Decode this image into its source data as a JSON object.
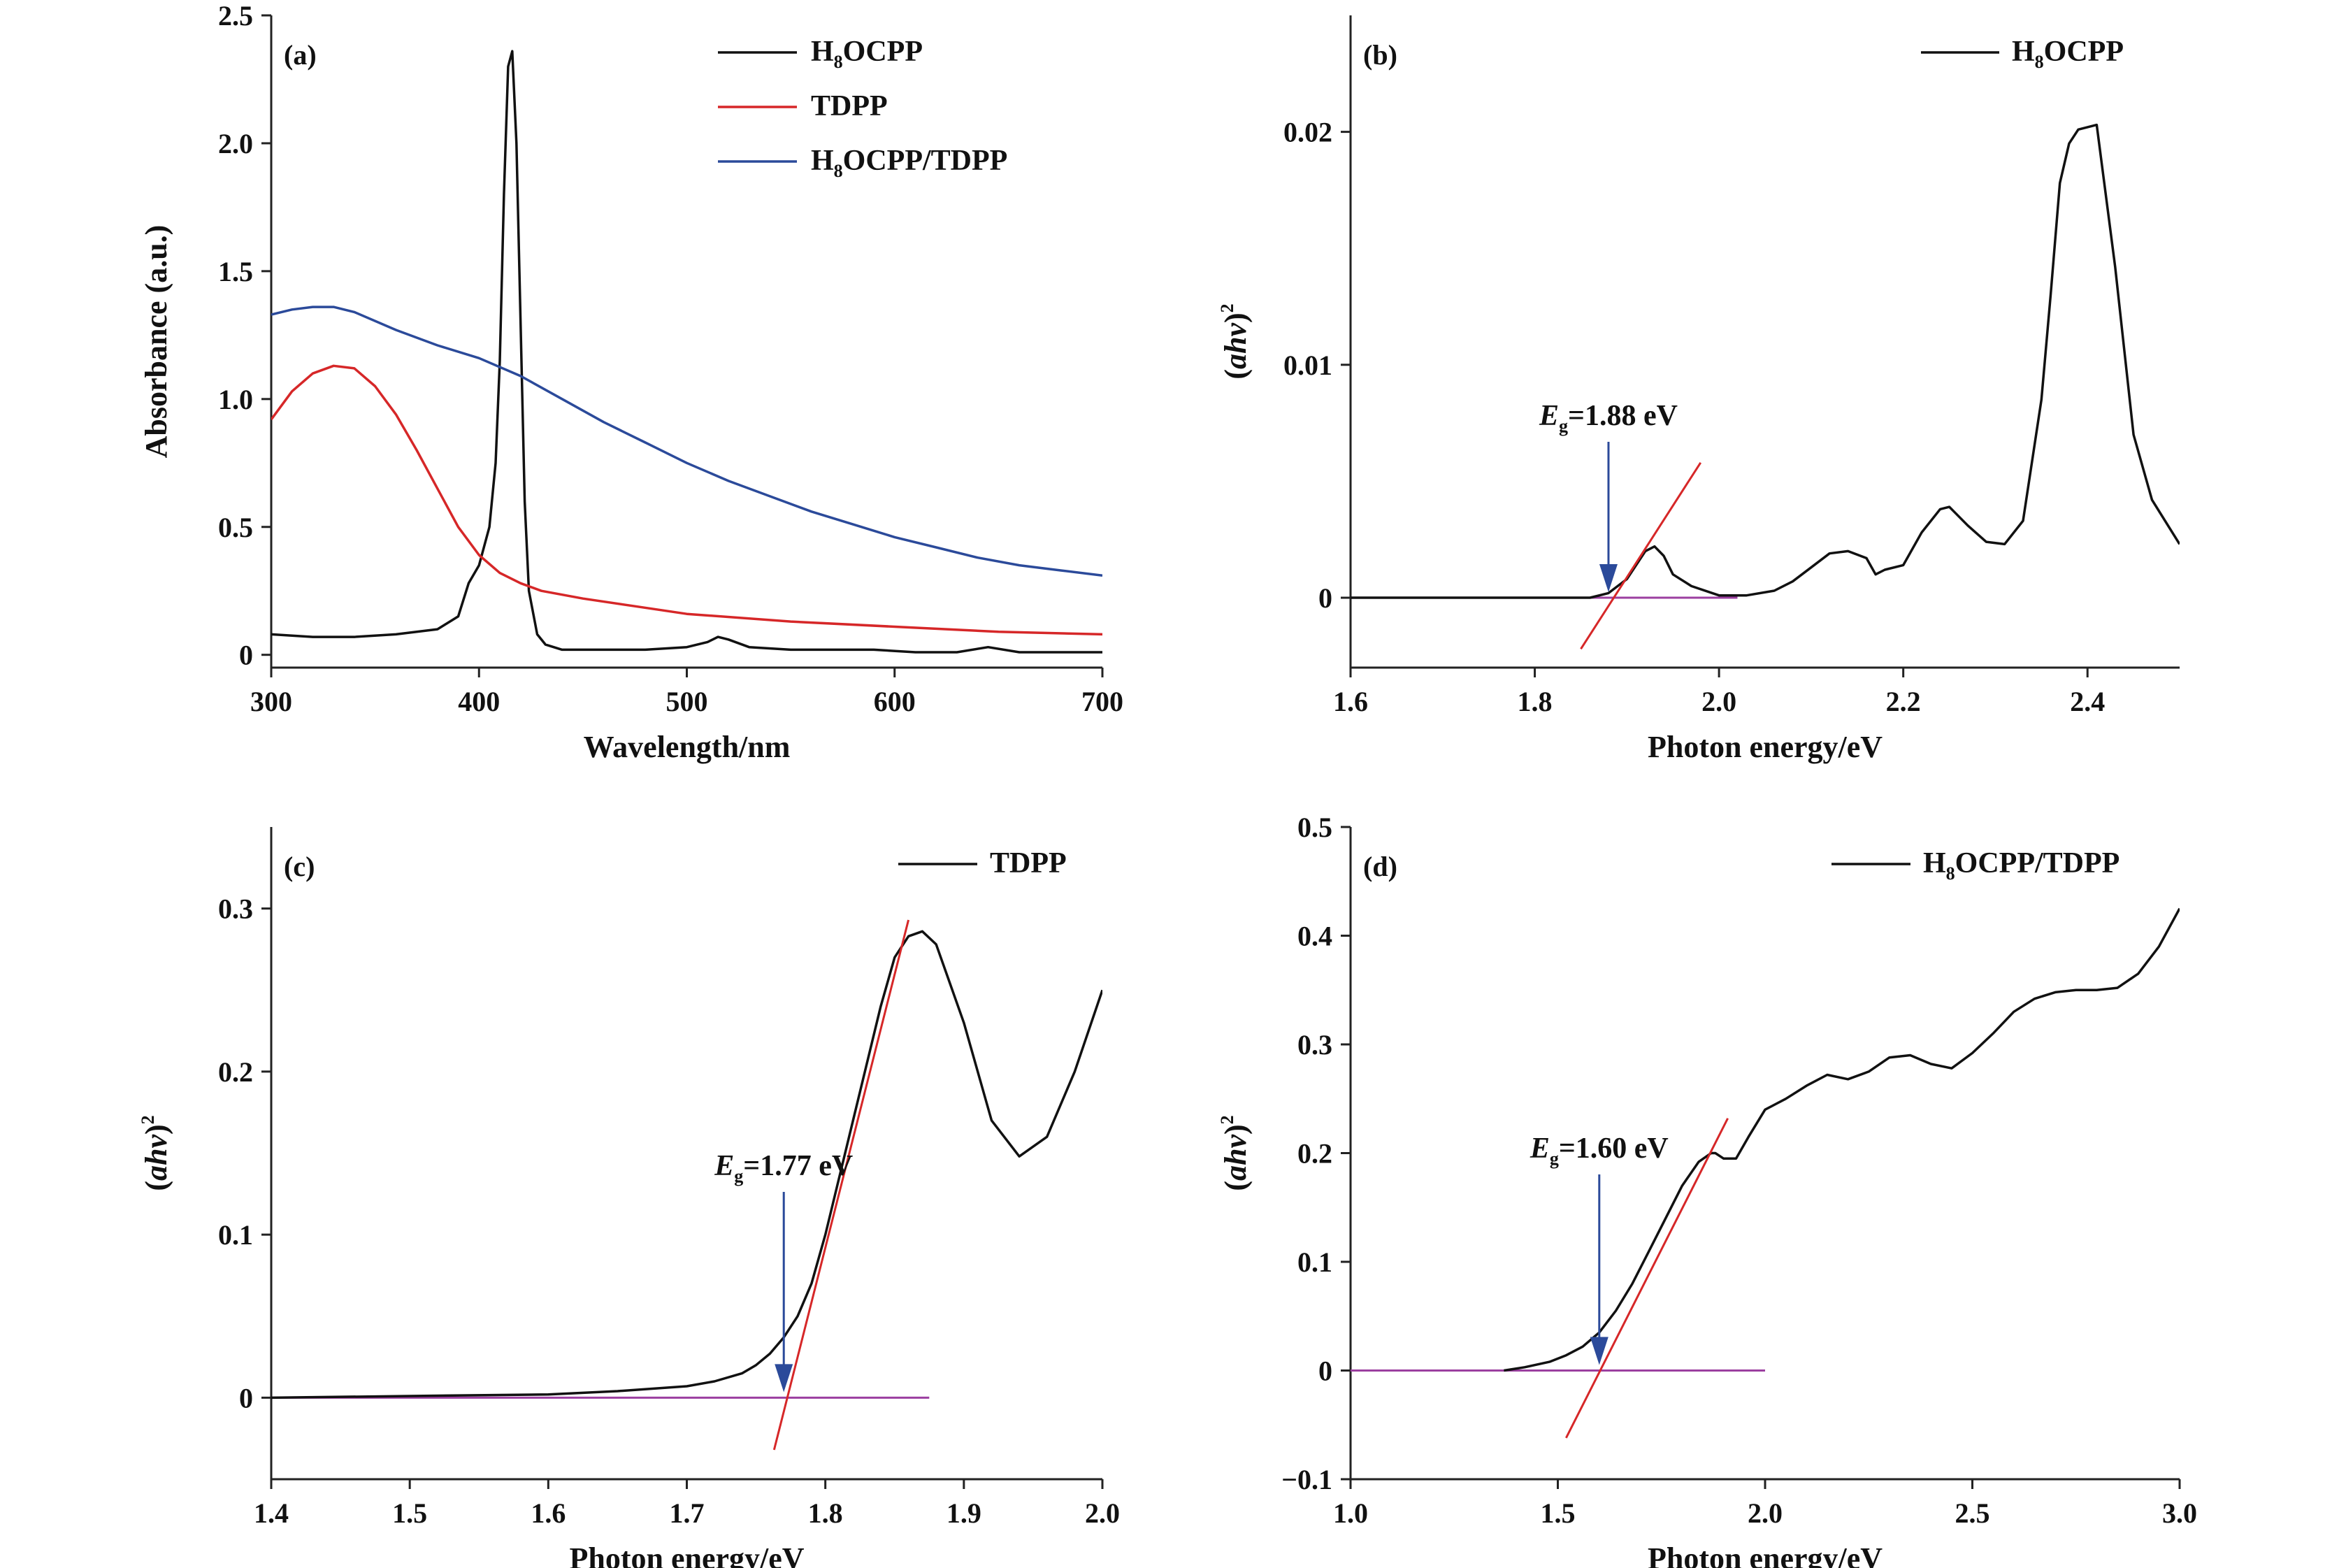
{
  "chart_data": [
    {
      "panel": "(a)",
      "type": "line",
      "xlabel": "Wavelength/nm",
      "ylabel": "Absorbance (a.u.)",
      "xlim": [
        300,
        700
      ],
      "ylim": [
        -0.05,
        2.5
      ],
      "xticks": [
        300,
        400,
        500,
        600,
        700
      ],
      "yticks": [
        0,
        0.5,
        1.0,
        1.5,
        2.0,
        2.5
      ],
      "xtick_labels": [
        "300",
        "400",
        "500",
        "600",
        "700"
      ],
      "ytick_labels": [
        "0",
        "0.5",
        "1.0",
        "1.5",
        "2.0",
        "2.5"
      ],
      "legend_position": "top-right",
      "legend": [
        {
          "main": "H",
          "sub": "8",
          "rest": "OCPP",
          "color": "#111111"
        },
        {
          "main": "TDPP",
          "sub": "",
          "rest": "",
          "color": "#d62728"
        },
        {
          "main": "H",
          "sub": "8",
          "rest": "OCPP/TDPP",
          "color": "#2b4a9a"
        }
      ],
      "series": [
        {
          "name": "H8OCPP",
          "color": "#111111",
          "x": [
            300,
            320,
            340,
            360,
            380,
            390,
            395,
            400,
            405,
            408,
            410,
            412,
            414,
            416,
            418,
            420,
            422,
            424,
            428,
            432,
            440,
            460,
            480,
            500,
            510,
            515,
            520,
            530,
            550,
            570,
            590,
            610,
            630,
            645,
            660,
            680,
            700
          ],
          "y": [
            0.08,
            0.07,
            0.07,
            0.08,
            0.1,
            0.15,
            0.28,
            0.35,
            0.5,
            0.75,
            1.15,
            1.8,
            2.3,
            2.36,
            2.0,
            1.3,
            0.6,
            0.25,
            0.08,
            0.04,
            0.02,
            0.02,
            0.02,
            0.03,
            0.05,
            0.07,
            0.06,
            0.03,
            0.02,
            0.02,
            0.02,
            0.01,
            0.01,
            0.03,
            0.01,
            0.01,
            0.01
          ]
        },
        {
          "name": "TDPP",
          "color": "#d62728",
          "x": [
            300,
            310,
            320,
            330,
            340,
            350,
            360,
            370,
            380,
            390,
            400,
            410,
            420,
            430,
            450,
            475,
            500,
            550,
            600,
            650,
            700
          ],
          "y": [
            0.92,
            1.03,
            1.1,
            1.13,
            1.12,
            1.05,
            0.94,
            0.8,
            0.65,
            0.5,
            0.39,
            0.32,
            0.28,
            0.25,
            0.22,
            0.19,
            0.16,
            0.13,
            0.11,
            0.09,
            0.08
          ]
        },
        {
          "name": "H8OCPP/TDPP",
          "color": "#2b4a9a",
          "x": [
            300,
            310,
            320,
            330,
            340,
            360,
            380,
            400,
            420,
            440,
            460,
            480,
            500,
            520,
            540,
            560,
            580,
            600,
            620,
            640,
            660,
            680,
            700
          ],
          "y": [
            1.33,
            1.35,
            1.36,
            1.36,
            1.34,
            1.27,
            1.21,
            1.16,
            1.09,
            1.0,
            0.91,
            0.83,
            0.75,
            0.68,
            0.62,
            0.56,
            0.51,
            0.46,
            0.42,
            0.38,
            0.35,
            0.33,
            0.31
          ]
        }
      ]
    },
    {
      "panel": "(b)",
      "type": "line",
      "xlabel": "Photon energy/eV",
      "ylabel": "(ahv)2",
      "xlim": [
        1.6,
        2.5
      ],
      "ylim": [
        -0.003,
        0.025
      ],
      "xticks": [
        1.6,
        1.8,
        2.0,
        2.2,
        2.4
      ],
      "yticks": [
        0,
        0.01,
        0.02
      ],
      "xtick_labels": [
        "1.6",
        "1.8",
        "2.0",
        "2.2",
        "2.4"
      ],
      "ytick_labels": [
        "0",
        "0.01",
        "0.02"
      ],
      "legend_position": "top-right",
      "legend": [
        {
          "main": "H",
          "sub": "8",
          "rest": "OCPP",
          "color": "#111111"
        }
      ],
      "annotation": {
        "E": "E",
        "sub": "g",
        "rest": "=1.88 eV",
        "x": 1.88
      },
      "series": [
        {
          "name": "H8OCPP",
          "color": "#111111",
          "x": [
            1.6,
            1.7,
            1.8,
            1.86,
            1.88,
            1.9,
            1.91,
            1.92,
            1.93,
            1.94,
            1.95,
            1.97,
            2.0,
            2.03,
            2.06,
            2.08,
            2.1,
            2.12,
            2.14,
            2.16,
            2.17,
            2.18,
            2.2,
            2.22,
            2.24,
            2.25,
            2.27,
            2.29,
            2.31,
            2.33,
            2.35,
            2.36,
            2.37,
            2.38,
            2.39,
            2.41,
            2.43,
            2.45,
            2.47,
            2.5
          ],
          "y": [
            0,
            0,
            0,
            0,
            0.0002,
            0.0008,
            0.0014,
            0.002,
            0.0022,
            0.0018,
            0.001,
            0.0005,
            0.0001,
            0.0001,
            0.0003,
            0.0007,
            0.0013,
            0.0019,
            0.002,
            0.0017,
            0.001,
            0.0012,
            0.0014,
            0.0028,
            0.0038,
            0.0039,
            0.0031,
            0.0024,
            0.0023,
            0.0033,
            0.0085,
            0.013,
            0.0178,
            0.0195,
            0.0201,
            0.0203,
            0.0142,
            0.007,
            0.0042,
            0.0023
          ]
        }
      ],
      "tangent": {
        "x": [
          1.85,
          1.98
        ],
        "y": [
          -0.0022,
          0.0058
        ]
      },
      "baseline": {
        "x": [
          1.6,
          2.02
        ],
        "y": [
          0,
          0
        ]
      }
    },
    {
      "panel": "(c)",
      "type": "line",
      "xlabel": "Photon energy/eV",
      "ylabel": "(ahv)2",
      "xlim": [
        1.4,
        2.0
      ],
      "ylim": [
        -0.05,
        0.35
      ],
      "xticks": [
        1.4,
        1.5,
        1.6,
        1.7,
        1.8,
        1.9,
        2.0
      ],
      "yticks": [
        0,
        0.1,
        0.2,
        0.3
      ],
      "xtick_labels": [
        "1.4",
        "1.5",
        "1.6",
        "1.7",
        "1.8",
        "1.9",
        "2.0"
      ],
      "ytick_labels": [
        "0",
        "0.1",
        "0.2",
        "0.3"
      ],
      "legend_position": "top-right",
      "legend": [
        {
          "main": "TDPP",
          "sub": "",
          "rest": "",
          "color": "#111111"
        }
      ],
      "annotation": {
        "E": "E",
        "sub": "g",
        "rest": "=1.77 eV",
        "x": 1.77
      },
      "series": [
        {
          "name": "TDPP",
          "color": "#111111",
          "x": [
            1.4,
            1.5,
            1.6,
            1.65,
            1.7,
            1.72,
            1.74,
            1.75,
            1.76,
            1.77,
            1.78,
            1.79,
            1.8,
            1.82,
            1.84,
            1.85,
            1.86,
            1.87,
            1.88,
            1.9,
            1.92,
            1.94,
            1.96,
            1.98,
            2.0
          ],
          "y": [
            0,
            0.001,
            0.002,
            0.004,
            0.007,
            0.01,
            0.015,
            0.02,
            0.027,
            0.037,
            0.05,
            0.07,
            0.1,
            0.17,
            0.24,
            0.27,
            0.283,
            0.286,
            0.278,
            0.23,
            0.17,
            0.148,
            0.16,
            0.2,
            0.25
          ]
        }
      ],
      "tangent": {
        "x": [
          1.763,
          1.86
        ],
        "y": [
          -0.032,
          0.293
        ]
      },
      "baseline": {
        "x": [
          1.4,
          1.875
        ],
        "y": [
          0,
          0
        ]
      }
    },
    {
      "panel": "(d)",
      "type": "line",
      "xlabel": "Photon energy/eV",
      "ylabel": "(ahv)2",
      "xlim": [
        1.0,
        3.0
      ],
      "ylim": [
        -0.1,
        0.5
      ],
      "xticks": [
        1.0,
        1.5,
        2.0,
        2.5,
        3.0
      ],
      "yticks": [
        -0.1,
        0,
        0.1,
        0.2,
        0.3,
        0.4,
        0.5
      ],
      "xtick_labels": [
        "1.0",
        "1.5",
        "2.0",
        "2.5",
        "3.0"
      ],
      "ytick_labels": [
        "−0.1",
        "0",
        "0.1",
        "0.2",
        "0.3",
        "0.4",
        "0.5"
      ],
      "legend_position": "top-right",
      "legend": [
        {
          "main": "H",
          "sub": "8",
          "rest": "OCPP/TDPP",
          "color": "#111111"
        }
      ],
      "annotation": {
        "E": "E",
        "sub": "g",
        "rest": "=1.60 eV",
        "x": 1.6
      },
      "series": [
        {
          "name": "H8OCPP/TDPP",
          "color": "#111111",
          "x": [
            1.37,
            1.42,
            1.48,
            1.52,
            1.56,
            1.6,
            1.64,
            1.68,
            1.72,
            1.76,
            1.8,
            1.84,
            1.87,
            1.88,
            1.9,
            1.93,
            1.96,
            2.0,
            2.05,
            2.1,
            2.15,
            2.2,
            2.25,
            2.3,
            2.35,
            2.4,
            2.45,
            2.5,
            2.55,
            2.6,
            2.65,
            2.7,
            2.75,
            2.8,
            2.85,
            2.9,
            2.95,
            3.0
          ],
          "y": [
            0,
            0.003,
            0.008,
            0.014,
            0.022,
            0.035,
            0.055,
            0.08,
            0.11,
            0.14,
            0.17,
            0.192,
            0.2,
            0.2,
            0.195,
            0.195,
            0.215,
            0.24,
            0.25,
            0.262,
            0.272,
            0.268,
            0.275,
            0.288,
            0.29,
            0.282,
            0.278,
            0.292,
            0.31,
            0.33,
            0.342,
            0.348,
            0.35,
            0.35,
            0.352,
            0.365,
            0.39,
            0.425
          ]
        }
      ],
      "tangent": {
        "x": [
          1.52,
          1.91
        ],
        "y": [
          -0.062,
          0.232
        ]
      },
      "baseline": {
        "x": [
          1.0,
          2.0
        ],
        "y": [
          0,
          0
        ]
      }
    }
  ]
}
